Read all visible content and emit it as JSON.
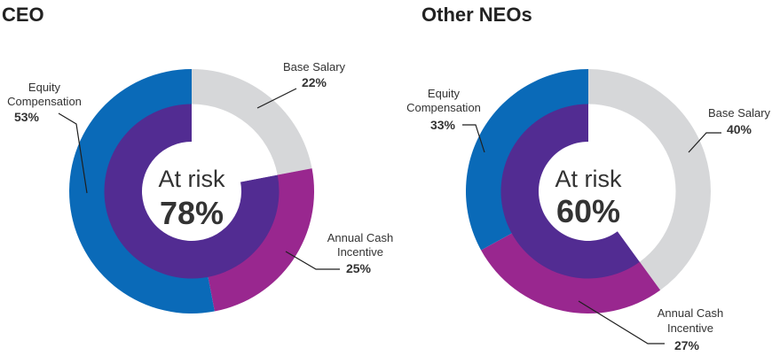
{
  "colors": {
    "base_salary": "#d6d7d9",
    "annual_cash_incentive": "#99278f",
    "equity_compensation": "#0a6ab8",
    "at_risk": "#522c92",
    "text": "#333333"
  },
  "chart_data": [
    {
      "type": "pie",
      "title": "CEO",
      "categories": [
        "Base Salary",
        "Annual Cash Incentive",
        "Equity Compensation"
      ],
      "values": [
        22,
        25,
        53
      ],
      "value_labels": [
        "22%",
        "25%",
        "53%"
      ],
      "label_lines": [
        [
          "Base Salary"
        ],
        [
          "Annual Cash",
          "Incentive"
        ],
        [
          "Equity",
          "Compensation"
        ]
      ],
      "at_risk": {
        "label": "At risk",
        "value": 78,
        "value_label": "78%"
      }
    },
    {
      "type": "pie",
      "title": "Other NEOs",
      "categories": [
        "Base Salary",
        "Annual Cash Incentive",
        "Equity Compensation"
      ],
      "values": [
        40,
        27,
        33
      ],
      "value_labels": [
        "40%",
        "27%",
        "33%"
      ],
      "label_lines": [
        [
          "Base Salary"
        ],
        [
          "Annual Cash",
          "Incentive"
        ],
        [
          "Equity",
          "Compensation"
        ]
      ],
      "at_risk": {
        "label": "At risk",
        "value": 60,
        "value_label": "60%"
      }
    }
  ]
}
